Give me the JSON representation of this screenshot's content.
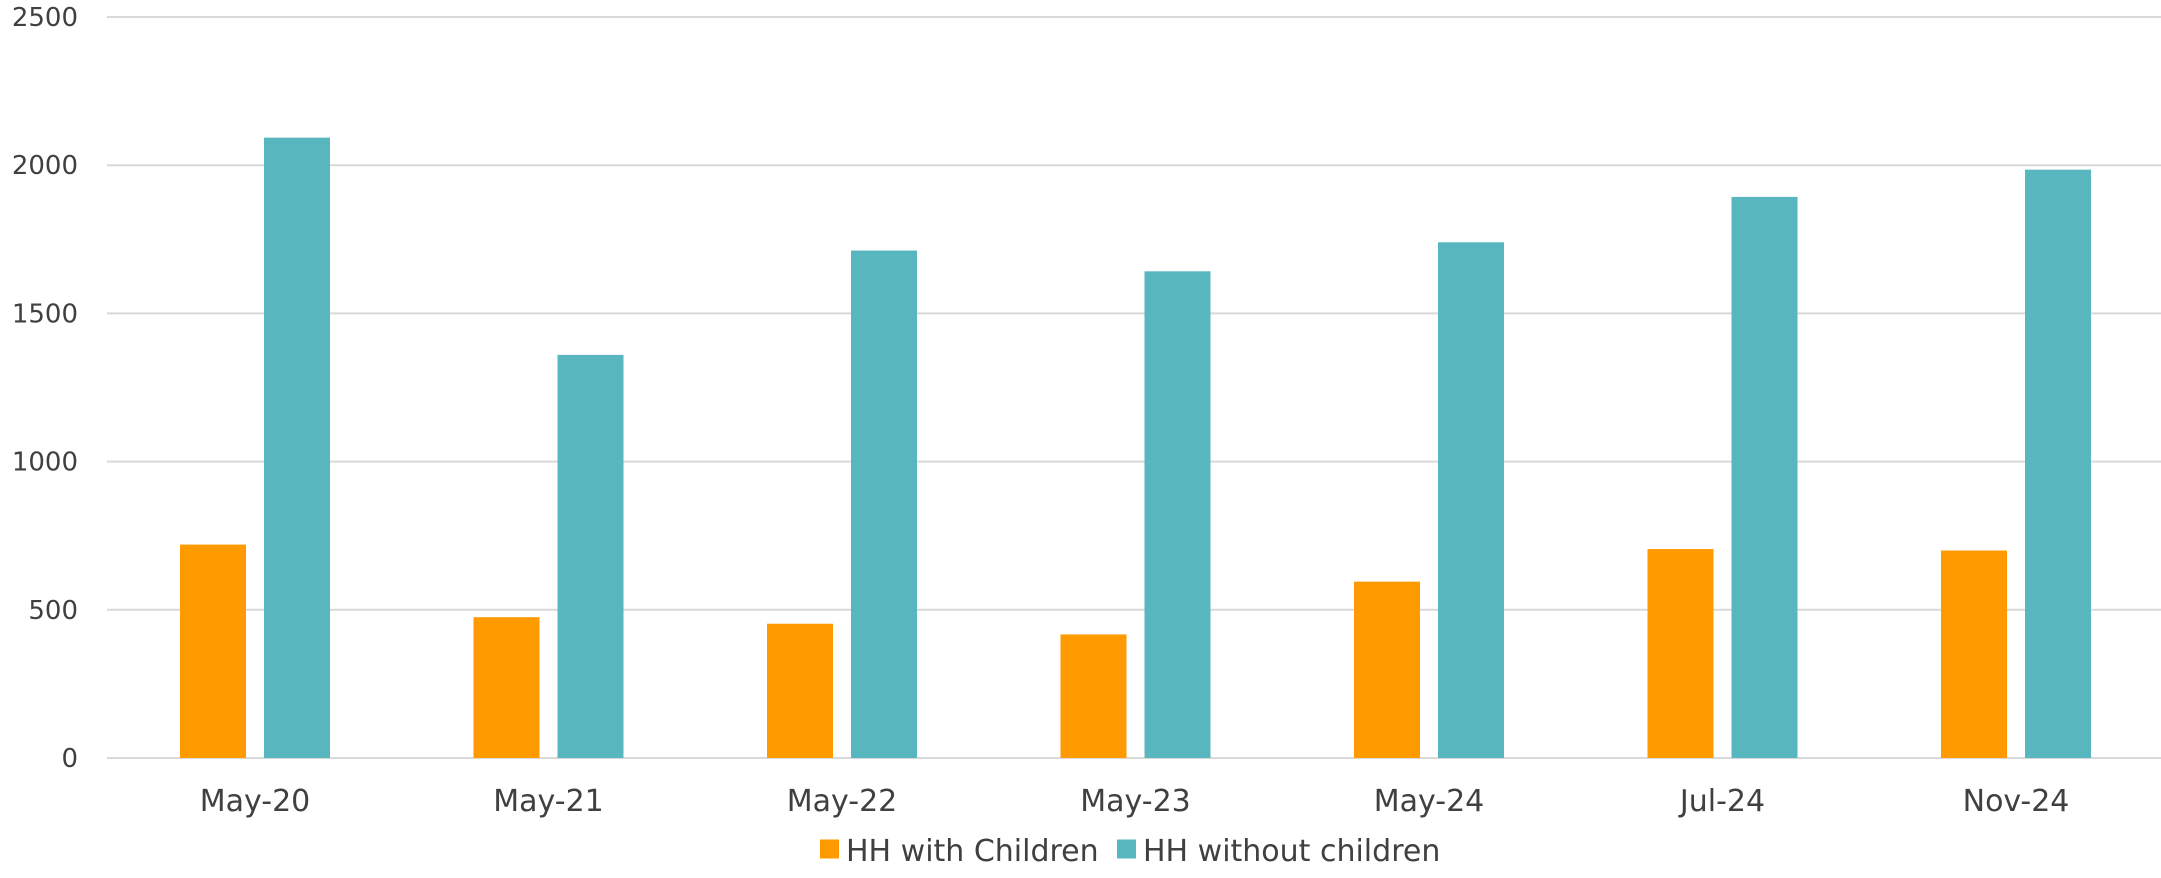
{
  "chart_data": {
    "type": "bar",
    "categories": [
      "May-20",
      "May-21",
      "May-22",
      "May-23",
      "May-24",
      "Jul-24",
      "Nov-24"
    ],
    "series": [
      {
        "name": "HH with Children",
        "color": "#ff9a00",
        "values": [
          720,
          475,
          453,
          417,
          595,
          705,
          700
        ]
      },
      {
        "name": "HH without children",
        "color": "#58b6be",
        "values": [
          2093,
          1360,
          1712,
          1642,
          1740,
          1893,
          1985
        ]
      }
    ],
    "ylim": [
      0,
      2500
    ],
    "yticks": [
      0,
      500,
      1000,
      1500,
      2000,
      2500
    ],
    "grid": true,
    "legend_position": "bottom",
    "title": "",
    "xlabel": "",
    "ylabel": ""
  }
}
